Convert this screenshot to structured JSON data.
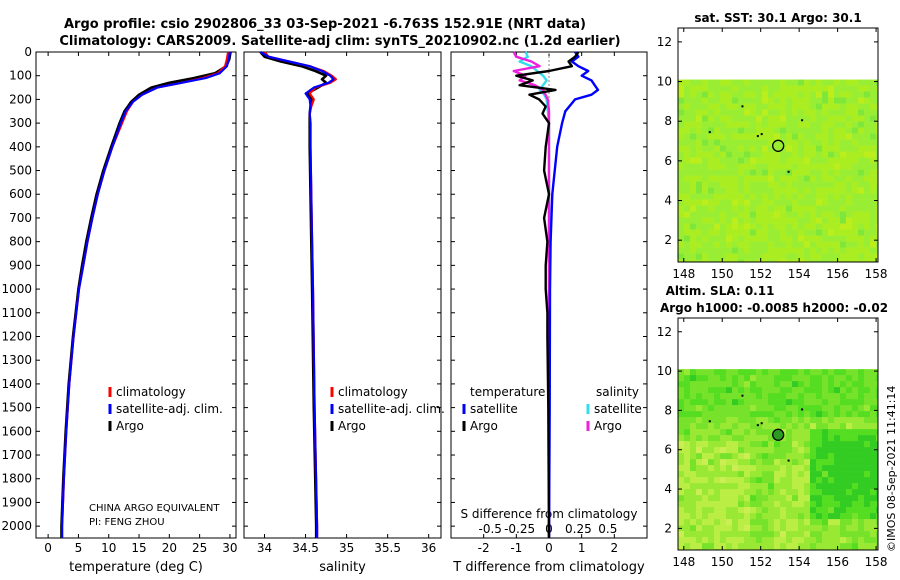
{
  "titles": {
    "line1": "Argo profile: csio 2902806_33 03-Sep-2021 -6.763S 152.91E (NRT data)",
    "line2": "Climatology: CARS2009. Satellite-adj clim: synTS_20210902.nc (1.2d earlier)",
    "sst": "sat. SST: 30.1 Argo: 30.1",
    "sla1": "Altim. SLA: 0.11",
    "sla2": "Argo h1000: -0.0085 h2000: -0.02"
  },
  "credits": {
    "institution": "CHINA ARGO EQUIVALENT",
    "pi": "PI: FENG ZHOU",
    "timestamp": "©IMOS 08-Sep-2021 11:41:14"
  },
  "colors": {
    "climatology": "#ff0000",
    "satellite": "#0000ff",
    "argo": "#000000",
    "sal_satellite": "#33ddee",
    "sal_argo": "#ee22dd"
  },
  "chart_data": [
    {
      "type": "line",
      "name": "temperature",
      "xlabel": "temperature (deg C)",
      "xlim": [
        -2,
        31
      ],
      "xticks": [
        0,
        5,
        10,
        15,
        20,
        25,
        30
      ],
      "ylim": [
        0,
        2050
      ],
      "yticks": [
        0,
        100,
        200,
        300,
        400,
        500,
        600,
        700,
        800,
        900,
        1000,
        1100,
        1200,
        1300,
        1400,
        1500,
        1600,
        1700,
        1800,
        1900,
        2000
      ],
      "legend": [
        "climatology",
        "satellite-adj. clim.",
        "Argo"
      ],
      "series": [
        {
          "name": "climatology",
          "depth": [
            0,
            30,
            60,
            90,
            110,
            130,
            150,
            180,
            210,
            250,
            300,
            400,
            500,
            600,
            700,
            800,
            900,
            1000,
            1200,
            1400,
            1600,
            1800,
            2000,
            2050
          ],
          "values": [
            29.7,
            29.5,
            29.2,
            28.0,
            25.5,
            22.0,
            18.0,
            15.5,
            14.0,
            13.0,
            12.2,
            10.6,
            9.3,
            8.2,
            7.3,
            6.5,
            5.8,
            5.1,
            4.2,
            3.5,
            3.0,
            2.6,
            2.3,
            2.3
          ]
        },
        {
          "name": "satellite",
          "depth": [
            0,
            30,
            60,
            90,
            110,
            130,
            150,
            180,
            210,
            250,
            300,
            400,
            500,
            600,
            700,
            800,
            900,
            1000,
            1200,
            1400,
            1600,
            1800,
            2000,
            2050
          ],
          "values": [
            30.0,
            29.8,
            29.5,
            28.3,
            26.0,
            22.0,
            18.0,
            15.5,
            14.0,
            12.8,
            12.0,
            10.6,
            9.3,
            8.2,
            7.3,
            6.5,
            5.8,
            5.1,
            4.2,
            3.5,
            3.0,
            2.6,
            2.3,
            2.3
          ]
        },
        {
          "name": "argo",
          "depth": [
            0,
            30,
            60,
            90,
            110,
            130,
            150,
            180,
            210,
            250,
            300,
            400,
            500,
            600,
            700,
            800,
            900,
            1000,
            1200,
            1400,
            1600,
            1800,
            2000,
            2050
          ],
          "values": [
            30.1,
            29.9,
            29.4,
            27.5,
            24.0,
            20.0,
            17.0,
            15.0,
            13.7,
            12.6,
            11.8,
            10.4,
            9.1,
            8.0,
            7.1,
            6.3,
            5.6,
            5.0,
            4.1,
            3.4,
            2.9,
            2.5,
            2.2,
            2.2
          ]
        }
      ]
    },
    {
      "type": "line",
      "name": "salinity",
      "xlabel": "salinity",
      "xlim": [
        33.75,
        36.15
      ],
      "xticks": [
        34,
        34.5,
        35,
        35.5,
        36
      ],
      "xticklabels": [
        "34",
        "34.5",
        "35",
        "35.5",
        "36"
      ],
      "ylim": [
        0,
        2050
      ],
      "legend": [
        "climatology",
        "satellite-adj. clim.",
        "Argo"
      ],
      "series": [
        {
          "name": "climatology",
          "depth": [
            0,
            20,
            40,
            60,
            80,
            100,
            115,
            130,
            150,
            175,
            200,
            230,
            260,
            300,
            400,
            600,
            800,
            1000,
            1500,
            2000,
            2050
          ],
          "values": [
            34.0,
            34.05,
            34.3,
            34.55,
            34.72,
            34.82,
            34.87,
            34.8,
            34.62,
            34.55,
            34.6,
            34.57,
            34.55,
            34.56,
            34.56,
            34.57,
            34.58,
            34.59,
            34.61,
            34.64,
            34.64
          ]
        },
        {
          "name": "satellite",
          "depth": [
            0,
            20,
            40,
            60,
            80,
            100,
            115,
            130,
            150,
            175,
            200,
            230,
            260,
            300,
            400,
            600,
            800,
            1000,
            1500,
            2000,
            2050
          ],
          "values": [
            33.95,
            34.05,
            34.3,
            34.55,
            34.7,
            34.8,
            34.84,
            34.78,
            34.6,
            34.5,
            34.55,
            34.56,
            34.55,
            34.56,
            34.56,
            34.57,
            34.58,
            34.59,
            34.61,
            34.64,
            34.64
          ]
        },
        {
          "name": "argo",
          "depth": [
            0,
            20,
            40,
            60,
            80,
            100,
            115,
            130,
            150,
            175,
            200,
            230,
            260,
            300,
            400,
            600,
            800,
            1000,
            1500,
            2000,
            2050
          ],
          "values": [
            33.95,
            34.0,
            34.2,
            34.45,
            34.62,
            34.75,
            34.7,
            34.75,
            34.65,
            34.52,
            34.58,
            34.56,
            34.55,
            34.55,
            34.55,
            34.56,
            34.57,
            34.58,
            34.6,
            34.63,
            34.63
          ]
        }
      ]
    },
    {
      "type": "line",
      "name": "difference",
      "xlabel": "T difference from climatology",
      "xlabel_top": "S difference from climatology",
      "xlim": [
        -3,
        3
      ],
      "xticks": [
        -2,
        -1,
        0,
        1,
        2
      ],
      "xticks_top": [
        -0.5,
        -0.25,
        0,
        0.25,
        0.5
      ],
      "xticklabels_top": [
        "-0.5",
        "-0.25",
        "0",
        "0.25",
        "0.5"
      ],
      "ylim": [
        0,
        2050
      ],
      "legend_temperature_title": "temperature",
      "legend_salinity_title": "salinity",
      "legend_items": [
        "satellite",
        "Argo"
      ],
      "series": [
        {
          "name": "T satellite",
          "depth": [
            0,
            20,
            40,
            60,
            80,
            100,
            120,
            140,
            160,
            180,
            200,
            250,
            300,
            400,
            600,
            800,
            1000,
            1500,
            2050
          ],
          "values": [
            0.8,
            0.9,
            0.7,
            0.9,
            1.2,
            1.0,
            1.3,
            1.4,
            1.5,
            1.3,
            0.8,
            0.5,
            0.4,
            0.25,
            0.1,
            0.05,
            0.03,
            0.02,
            0.0
          ]
        },
        {
          "name": "T argo",
          "depth": [
            0,
            20,
            40,
            60,
            80,
            100,
            120,
            140,
            160,
            180,
            200,
            230,
            260,
            300,
            400,
            500,
            600,
            700,
            800,
            900,
            1000,
            1100,
            1200,
            1500,
            2050
          ],
          "values": [
            0.9,
            0.8,
            0.6,
            0.7,
            0.0,
            -1.0,
            -0.5,
            -0.9,
            0.2,
            -0.6,
            -0.3,
            -0.1,
            -0.2,
            0.0,
            -0.1,
            -0.15,
            0.0,
            -0.15,
            -0.05,
            -0.1,
            -0.1,
            -0.05,
            -0.05,
            -0.02,
            0.0
          ]
        },
        {
          "name": "S satellite",
          "depth": [
            0,
            20,
            40,
            60,
            80,
            100,
            120,
            140,
            160,
            180,
            200,
            250,
            300,
            400,
            600,
            1000,
            2050
          ],
          "values": [
            -0.2,
            -0.18,
            -0.25,
            -0.15,
            -0.1,
            -0.05,
            -0.02,
            -0.05,
            -0.08,
            -0.04,
            -0.02,
            -0.01,
            0.0,
            0.0,
            0.0,
            0.0,
            0.0
          ]
        },
        {
          "name": "S argo",
          "depth": [
            0,
            20,
            40,
            60,
            80,
            100,
            120,
            140,
            160,
            180,
            200,
            250,
            300,
            400,
            600,
            1000,
            2050
          ],
          "values": [
            -0.3,
            -0.28,
            -0.15,
            -0.08,
            -0.3,
            -0.2,
            -0.25,
            -0.12,
            -0.05,
            -0.03,
            -0.01,
            0.0,
            0.0,
            0.0,
            0.0,
            0.0,
            0.0
          ]
        }
      ]
    },
    {
      "type": "heatmap",
      "name": "sst_map",
      "xlim": [
        147.7,
        158.1
      ],
      "ylim": [
        0.9,
        12.7
      ],
      "data_top": 10.1,
      "xticks": [
        148,
        150,
        152,
        154,
        156,
        158
      ],
      "yticks": [
        2,
        4,
        6,
        8,
        10,
        12
      ],
      "argo_position": [
        152.91,
        6.76
      ]
    },
    {
      "type": "heatmap",
      "name": "sla_map",
      "xlim": [
        147.7,
        158.1
      ],
      "ylim": [
        0.9,
        12.7
      ],
      "data_top": 10.1,
      "xticks": [
        148,
        150,
        152,
        154,
        156,
        158
      ],
      "yticks": [
        2,
        4,
        6,
        8,
        10,
        12
      ],
      "argo_position": [
        152.91,
        6.76
      ]
    }
  ]
}
